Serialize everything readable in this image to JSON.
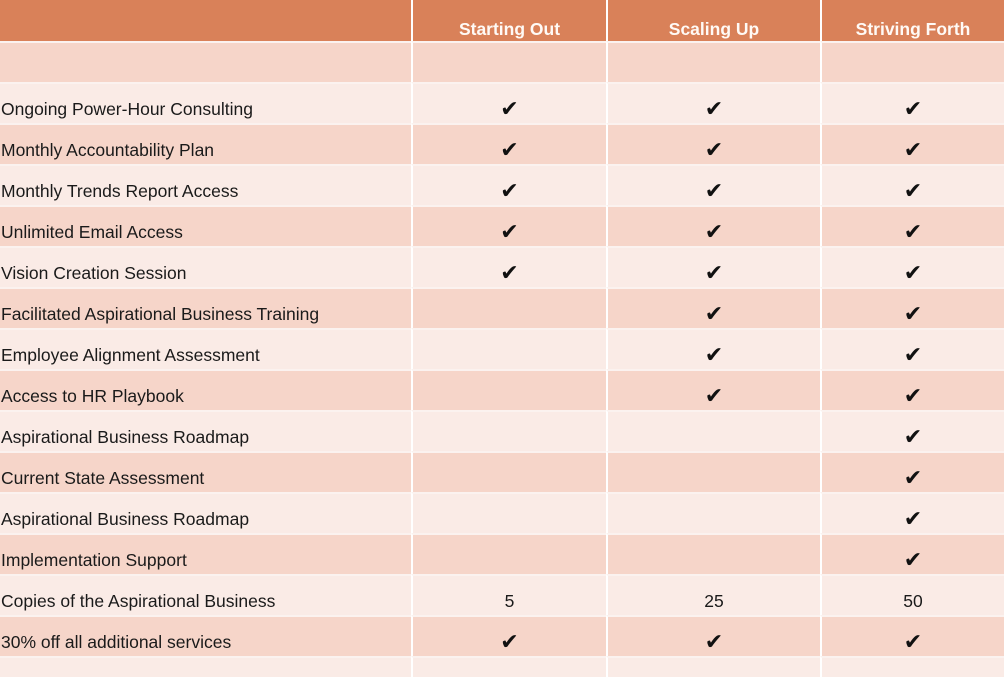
{
  "columns": [
    "Starting Out",
    "Scaling Up",
    "Striving Forth"
  ],
  "check_glyph": "✔",
  "rows": [
    {
      "label": "",
      "cells": [
        "",
        "",
        ""
      ]
    },
    {
      "label": "Ongoing Power-Hour Consulting",
      "cells": [
        "✔",
        "✔",
        "✔"
      ]
    },
    {
      "label": "Monthly Accountability Plan",
      "cells": [
        "✔",
        "✔",
        "✔"
      ]
    },
    {
      "label": "Monthly Trends Report Access",
      "cells": [
        "✔",
        "✔",
        "✔"
      ]
    },
    {
      "label": "Unlimited Email Access",
      "cells": [
        "✔",
        "✔",
        "✔"
      ]
    },
    {
      "label": "Vision Creation Session",
      "cells": [
        "✔",
        "✔",
        "✔"
      ]
    },
    {
      "label": "Facilitated Aspirational Business Training",
      "cells": [
        "",
        "✔",
        "✔"
      ]
    },
    {
      "label": "Employee Alignment Assessment",
      "cells": [
        "",
        "✔",
        "✔"
      ]
    },
    {
      "label": "Access to HR Playbook",
      "cells": [
        "",
        "✔",
        "✔"
      ]
    },
    {
      "label": "Aspirational Business Roadmap",
      "cells": [
        "",
        "",
        "✔"
      ]
    },
    {
      "label": "Current State Assessment",
      "cells": [
        "",
        "",
        "✔"
      ]
    },
    {
      "label": "Aspirational Business Roadmap",
      "cells": [
        "",
        "",
        "✔"
      ]
    },
    {
      "label": "Implementation Support",
      "cells": [
        "",
        "",
        "✔"
      ]
    },
    {
      "label": "Copies of the Aspirational Business",
      "cells": [
        "5",
        "25",
        "50"
      ]
    },
    {
      "label": "30% off all additional services",
      "cells": [
        "✔",
        "✔",
        "✔"
      ]
    },
    {
      "label": "",
      "cells": [
        "",
        "",
        ""
      ]
    }
  ],
  "colors": {
    "header": "#d98159",
    "row_dark": "#f6d5c9",
    "row_light": "#faebe6"
  }
}
